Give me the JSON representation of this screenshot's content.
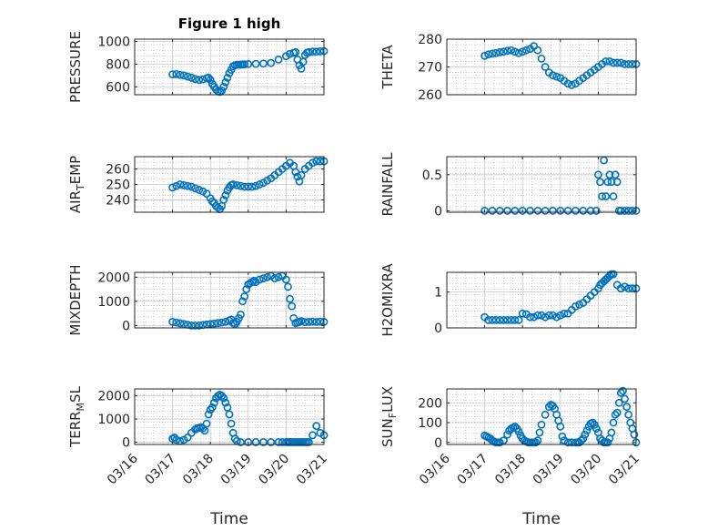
{
  "title": "Figure 1 high",
  "colors": {
    "marker": "#0072BD",
    "axis": "#262626",
    "grid": "#b0b0b0"
  },
  "x_tick_labels": [
    "03/16",
    "03/17",
    "03/18",
    "03/19",
    "03/20",
    "03/21"
  ],
  "chart_data": [
    {
      "type": "scatter",
      "marker": "circle",
      "grid": true,
      "title": "Figure 1 high",
      "xlabel": "",
      "ylabel": "PRESSURE",
      "xlim": [
        0,
        5
      ],
      "ylim": [
        530,
        1020
      ],
      "yticks": [
        600,
        800,
        1000
      ],
      "x": [
        1,
        1.1,
        1.2,
        1.3,
        1.4,
        1.5,
        1.6,
        1.7,
        1.8,
        1.9,
        1.95,
        2.0,
        2.05,
        2.1,
        2.15,
        2.2,
        2.25,
        2.3,
        2.35,
        2.4,
        2.45,
        2.5,
        2.55,
        2.6,
        2.65,
        2.7,
        2.75,
        2.8,
        2.85,
        2.9,
        3.0,
        3.2,
        3.4,
        3.6,
        3.8,
        4.0,
        4.1,
        4.2,
        4.25,
        4.3,
        4.35,
        4.4,
        4.45,
        4.5,
        4.55,
        4.6,
        4.7,
        4.8,
        4.9,
        5.0
      ],
      "y": [
        710,
        712,
        705,
        700,
        690,
        680,
        668,
        660,
        665,
        675,
        680,
        660,
        625,
        600,
        575,
        560,
        555,
        565,
        600,
        640,
        680,
        720,
        750,
        780,
        790,
        795,
        795,
        795,
        797,
        798,
        800,
        802,
        805,
        810,
        840,
        870,
        890,
        900,
        905,
        840,
        790,
        760,
        820,
        880,
        900,
        905,
        910,
        910,
        912,
        915
      ]
    },
    {
      "type": "scatter",
      "marker": "circle",
      "grid": true,
      "xlabel": "",
      "ylabel": "THETA",
      "xlim": [
        0,
        5
      ],
      "ylim": [
        260,
        280
      ],
      "yticks": [
        260,
        270,
        280
      ],
      "x": [
        1,
        1.1,
        1.2,
        1.3,
        1.4,
        1.5,
        1.6,
        1.7,
        1.8,
        1.9,
        2.0,
        2.1,
        2.2,
        2.3,
        2.4,
        2.5,
        2.6,
        2.7,
        2.8,
        2.9,
        3.0,
        3.1,
        3.2,
        3.3,
        3.4,
        3.5,
        3.6,
        3.7,
        3.8,
        3.9,
        4.0,
        4.1,
        4.2,
        4.3,
        4.4,
        4.5,
        4.6,
        4.7,
        4.8,
        4.9,
        5.0
      ],
      "y": [
        274,
        274.5,
        274.8,
        275,
        275.3,
        275.5,
        275.8,
        276,
        275.5,
        275,
        275.5,
        276,
        276.5,
        277.5,
        276,
        273,
        270,
        268,
        267,
        266.5,
        266,
        265,
        264,
        263.5,
        264,
        265,
        266,
        267,
        268,
        269,
        270,
        271,
        272,
        272,
        271.5,
        271.5,
        271.5,
        271,
        271,
        271,
        271
      ]
    },
    {
      "type": "scatter",
      "marker": "circle",
      "grid": true,
      "xlabel": "",
      "ylabel": "AIR_TEMP",
      "xlim": [
        0,
        5
      ],
      "ylim": [
        232,
        268
      ],
      "yticks": [
        240,
        250,
        260
      ],
      "x": [
        1,
        1.1,
        1.2,
        1.3,
        1.4,
        1.5,
        1.6,
        1.7,
        1.8,
        1.9,
        2.0,
        2.05,
        2.1,
        2.15,
        2.2,
        2.25,
        2.3,
        2.35,
        2.4,
        2.45,
        2.5,
        2.55,
        2.6,
        2.7,
        2.8,
        2.9,
        3.0,
        3.1,
        3.2,
        3.3,
        3.4,
        3.5,
        3.6,
        3.7,
        3.8,
        3.9,
        4.0,
        4.1,
        4.2,
        4.25,
        4.3,
        4.35,
        4.4,
        4.5,
        4.6,
        4.7,
        4.8,
        4.9,
        5.0
      ],
      "y": [
        248,
        249,
        250,
        249.5,
        249,
        248.5,
        247.5,
        246.5,
        245.5,
        244,
        241,
        239,
        238,
        236,
        235,
        234,
        236,
        240,
        243,
        246,
        248,
        249.5,
        250,
        249.5,
        249,
        248.5,
        248.5,
        248.5,
        249,
        250,
        251,
        252.5,
        254,
        256,
        258,
        260,
        262,
        264,
        262,
        258,
        255,
        252,
        256,
        260,
        262,
        264,
        265,
        265,
        265
      ]
    },
    {
      "type": "scatter",
      "marker": "circle",
      "grid": true,
      "xlabel": "",
      "ylabel": "RAINFALL",
      "xlim": [
        0,
        5
      ],
      "ylim": [
        -0.02,
        0.75
      ],
      "yticks": [
        0,
        0.5
      ],
      "x": [
        1,
        1.2,
        1.4,
        1.6,
        1.8,
        2.0,
        2.2,
        2.4,
        2.6,
        2.8,
        3.0,
        3.2,
        3.4,
        3.6,
        3.8,
        3.95,
        4.0,
        4.05,
        4.1,
        4.15,
        4.2,
        4.25,
        4.3,
        4.35,
        4.4,
        4.45,
        4.5,
        4.55,
        4.6,
        4.7,
        4.8,
        4.9,
        5.0
      ],
      "y": [
        0,
        0,
        0,
        0,
        0,
        0,
        0,
        0,
        0,
        0,
        0,
        0,
        0,
        0,
        0,
        0,
        0.5,
        0.4,
        0.2,
        0.7,
        0.2,
        0.4,
        0.5,
        0.4,
        0.2,
        0.5,
        0.4,
        0,
        0,
        0,
        0,
        0,
        0
      ]
    },
    {
      "type": "scatter",
      "marker": "circle",
      "grid": true,
      "xlabel": "",
      "ylabel": "MIXDEPTH",
      "xlim": [
        0,
        5
      ],
      "ylim": [
        -100,
        2200
      ],
      "yticks": [
        0,
        1000,
        2000
      ],
      "x": [
        1,
        1.1,
        1.2,
        1.3,
        1.4,
        1.5,
        1.6,
        1.7,
        1.8,
        1.9,
        2.0,
        2.1,
        2.2,
        2.3,
        2.4,
        2.5,
        2.55,
        2.6,
        2.65,
        2.7,
        2.75,
        2.8,
        2.85,
        2.9,
        2.95,
        3.0,
        3.05,
        3.1,
        3.15,
        3.2,
        3.3,
        3.4,
        3.5,
        3.6,
        3.7,
        3.8,
        3.9,
        4.0,
        4.05,
        4.1,
        4.15,
        4.2,
        4.25,
        4.3,
        4.35,
        4.4,
        4.5,
        4.6,
        4.7,
        4.8,
        4.9,
        5.0
      ],
      "y": [
        150,
        120,
        90,
        60,
        30,
        0,
        0,
        0,
        20,
        40,
        60,
        80,
        100,
        120,
        150,
        200,
        250,
        100,
        60,
        150,
        300,
        450,
        1000,
        1200,
        1500,
        1700,
        1750,
        1800,
        1850,
        1800,
        1900,
        1950,
        2000,
        2050,
        1950,
        2000,
        2050,
        1900,
        1600,
        1100,
        800,
        300,
        100,
        120,
        150,
        180,
        140,
        150,
        160,
        150,
        160,
        150
      ]
    },
    {
      "type": "scatter",
      "marker": "circle",
      "grid": true,
      "xlabel": "",
      "ylabel": "H2OMIXRA",
      "xlim": [
        0,
        5
      ],
      "ylim": [
        0,
        1.55
      ],
      "yticks": [
        0,
        1
      ],
      "x": [
        1,
        1.1,
        1.2,
        1.3,
        1.4,
        1.5,
        1.6,
        1.7,
        1.8,
        1.9,
        2.0,
        2.1,
        2.2,
        2.3,
        2.4,
        2.5,
        2.6,
        2.7,
        2.8,
        2.9,
        3.0,
        3.1,
        3.2,
        3.3,
        3.4,
        3.5,
        3.6,
        3.7,
        3.8,
        3.9,
        4.0,
        4.05,
        4.1,
        4.15,
        4.2,
        4.25,
        4.3,
        4.35,
        4.4,
        4.5,
        4.6,
        4.7,
        4.8,
        4.9,
        5.0
      ],
      "y": [
        0.3,
        0.22,
        0.22,
        0.22,
        0.22,
        0.22,
        0.22,
        0.22,
        0.22,
        0.22,
        0.4,
        0.38,
        0.3,
        0.3,
        0.35,
        0.35,
        0.3,
        0.35,
        0.35,
        0.3,
        0.35,
        0.4,
        0.4,
        0.5,
        0.6,
        0.65,
        0.7,
        0.8,
        0.9,
        1.0,
        1.1,
        1.2,
        1.25,
        1.3,
        1.35,
        1.4,
        1.45,
        1.5,
        1.5,
        1.2,
        1.1,
        1.15,
        1.1,
        1.1,
        1.1
      ]
    },
    {
      "type": "scatter",
      "marker": "circle",
      "grid": true,
      "xlabel": "Time",
      "ylabel": "TERR_MSL",
      "xlim": [
        0,
        5
      ],
      "ylim": [
        -100,
        2300
      ],
      "yticks": [
        0,
        1000,
        2000
      ],
      "x_tick_labels": [
        "03/16",
        "03/17",
        "03/18",
        "03/19",
        "03/20",
        "03/21"
      ],
      "x": [
        1,
        1.05,
        1.1,
        1.2,
        1.3,
        1.4,
        1.5,
        1.6,
        1.65,
        1.7,
        1.75,
        1.8,
        1.85,
        1.9,
        1.95,
        2.0,
        2.05,
        2.1,
        2.15,
        2.2,
        2.25,
        2.3,
        2.35,
        2.4,
        2.45,
        2.5,
        2.55,
        2.6,
        2.65,
        2.7,
        2.8,
        3.0,
        3.2,
        3.4,
        3.6,
        3.8,
        3.9,
        4.0,
        4.05,
        4.1,
        4.15,
        4.2,
        4.25,
        4.3,
        4.35,
        4.4,
        4.45,
        4.5,
        4.55,
        4.6,
        4.7,
        4.8,
        4.9,
        5.0
      ],
      "y": [
        150,
        200,
        100,
        50,
        100,
        200,
        400,
        550,
        600,
        620,
        640,
        600,
        500,
        800,
        1200,
        1400,
        1500,
        1700,
        1900,
        2000,
        2050,
        2000,
        1900,
        1700,
        1500,
        1200,
        800,
        400,
        150,
        50,
        0,
        0,
        0,
        0,
        0,
        0,
        0,
        0,
        0,
        0,
        0,
        0,
        0,
        0,
        0,
        0,
        0,
        0,
        0,
        0,
        300,
        700,
        400,
        300
      ]
    },
    {
      "type": "scatter",
      "marker": "circle",
      "grid": true,
      "xlabel": "Time",
      "ylabel": "SUN_FLUX",
      "xlim": [
        0,
        5
      ],
      "ylim": [
        -10,
        270
      ],
      "yticks": [
        0,
        100,
        200
      ],
      "x_tick_labels": [
        "03/16",
        "03/17",
        "03/18",
        "03/19",
        "03/20",
        "03/21"
      ],
      "x": [
        1,
        1.05,
        1.1,
        1.15,
        1.2,
        1.25,
        1.3,
        1.35,
        1.4,
        1.5,
        1.6,
        1.65,
        1.7,
        1.75,
        1.8,
        1.85,
        1.9,
        1.95,
        2.0,
        2.05,
        2.1,
        2.15,
        2.2,
        2.25,
        2.3,
        2.35,
        2.4,
        2.45,
        2.5,
        2.6,
        2.7,
        2.75,
        2.8,
        2.85,
        2.9,
        2.95,
        3.0,
        3.05,
        3.1,
        3.2,
        3.3,
        3.4,
        3.45,
        3.5,
        3.55,
        3.6,
        3.65,
        3.7,
        3.75,
        3.8,
        3.85,
        3.9,
        3.95,
        4.0,
        4.05,
        4.1,
        4.15,
        4.2,
        4.25,
        4.3,
        4.35,
        4.4,
        4.45,
        4.5,
        4.55,
        4.6,
        4.65,
        4.7,
        4.75,
        4.8,
        4.85,
        4.9,
        4.95,
        5.0
      ],
      "y": [
        35,
        30,
        25,
        20,
        10,
        5,
        0,
        0,
        0,
        10,
        40,
        60,
        70,
        75,
        80,
        70,
        55,
        35,
        20,
        10,
        5,
        0,
        0,
        0,
        0,
        0,
        10,
        50,
        90,
        140,
        180,
        190,
        185,
        170,
        140,
        110,
        80,
        30,
        10,
        0,
        0,
        0,
        0,
        0,
        10,
        20,
        40,
        60,
        80,
        95,
        100,
        90,
        70,
        50,
        20,
        10,
        0,
        0,
        0,
        20,
        50,
        100,
        140,
        150,
        200,
        250,
        260,
        220,
        180,
        140,
        100,
        70,
        40,
        0
      ]
    }
  ]
}
